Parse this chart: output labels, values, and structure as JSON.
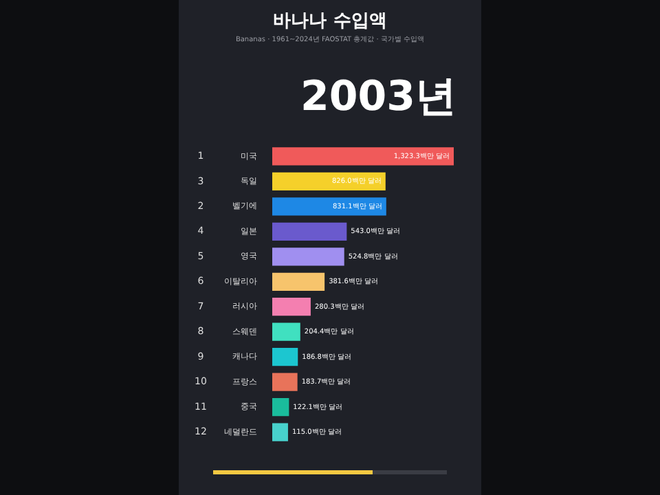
{
  "chart_data": {
    "type": "bar",
    "orientation": "horizontal",
    "title": "바나나 수입액",
    "subtitle": "Bananas · 1961~2024년 FAOSTAT 총계값 · 국가별 수입액",
    "categories": [
      "미국",
      "독일",
      "벨기에",
      "일본",
      "영국",
      "이탈리아",
      "러시아",
      "스웨덴",
      "캐나다",
      "프랑스",
      "중국",
      "네덜란드"
    ],
    "values": [
      1323.3,
      826.0,
      831.1,
      543.0,
      524.8,
      381.6,
      280.3,
      204.4,
      186.8,
      183.7,
      122.1,
      115.0
    ],
    "value_labels": [
      "1,323.3백만 달러",
      "826.0백만 달러",
      "831.1백만 달러",
      "543.0백만 달러",
      "524.8백만 달러",
      "381.6백만 달러",
      "280.3백만 달러",
      "204.4백만 달러",
      "186.8백만 달러",
      "183.7백만 달러",
      "122.1백만 달러",
      "115.0백만 달러"
    ],
    "colors": [
      "#f05a5a",
      "#f5d02a",
      "#1e88e5",
      "#6a5acd",
      "#a08ff0",
      "#f7c46c",
      "#f47fb0",
      "#40e0c0",
      "#1cc6d0",
      "#e8735a",
      "#1abc9c",
      "#48d1cc"
    ],
    "annotations": [
      "2003년",
      "1",
      "3",
      "2",
      "4",
      "5",
      "6",
      "7",
      "8",
      "9",
      "10",
      "11",
      "12"
    ],
    "legend": false,
    "tick_labels": "y"
  }
}
